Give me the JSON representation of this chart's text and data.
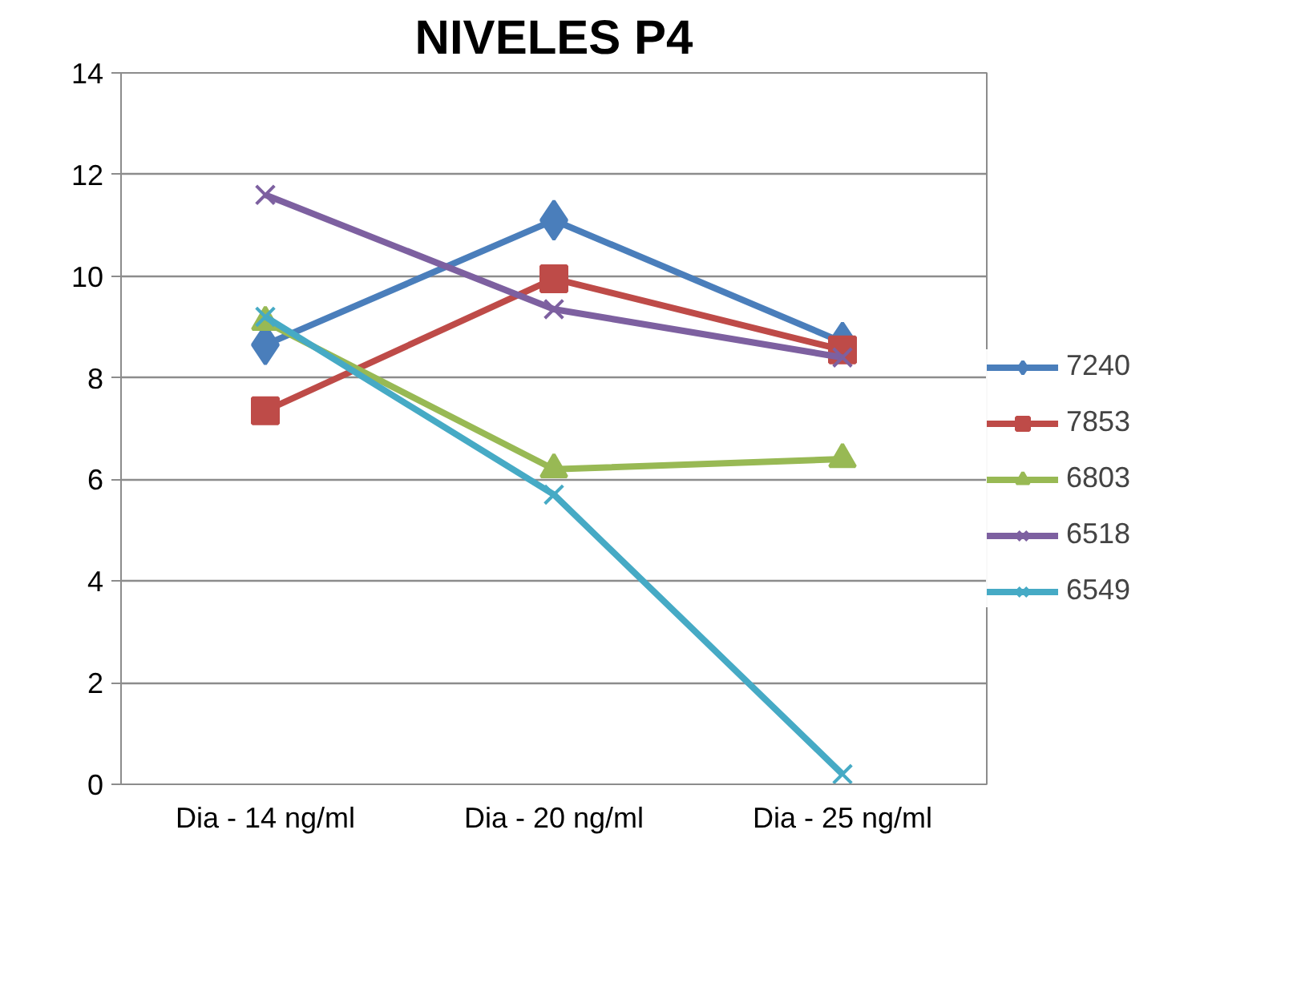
{
  "chart_data": {
    "type": "line",
    "title": "NIVELES P4",
    "categories": [
      "Dia - 14 ng/ml",
      "Dia - 20 ng/ml",
      "Dia - 25 ng/ml"
    ],
    "series": [
      {
        "name": "7240",
        "color": "#4a7ebb",
        "marker": "diamond",
        "values": [
          8.65,
          11.1,
          8.7
        ]
      },
      {
        "name": "7853",
        "color": "#be4b48",
        "marker": "square",
        "values": [
          7.35,
          9.95,
          8.55
        ]
      },
      {
        "name": "6803",
        "color": "#98b954",
        "marker": "triangle",
        "values": [
          9.1,
          6.2,
          6.4
        ]
      },
      {
        "name": "6518",
        "color": "#7d60a0",
        "marker": "cross",
        "values": [
          11.6,
          9.35,
          8.4
        ]
      },
      {
        "name": "6549",
        "color": "#46aac5",
        "marker": "cross",
        "values": [
          9.2,
          5.7,
          0.2
        ]
      }
    ],
    "ylim": [
      0,
      14
    ],
    "yticks": [
      0,
      2,
      4,
      6,
      8,
      10,
      12,
      14
    ],
    "grid": "y",
    "legend": "right",
    "line_style": "solid"
  }
}
